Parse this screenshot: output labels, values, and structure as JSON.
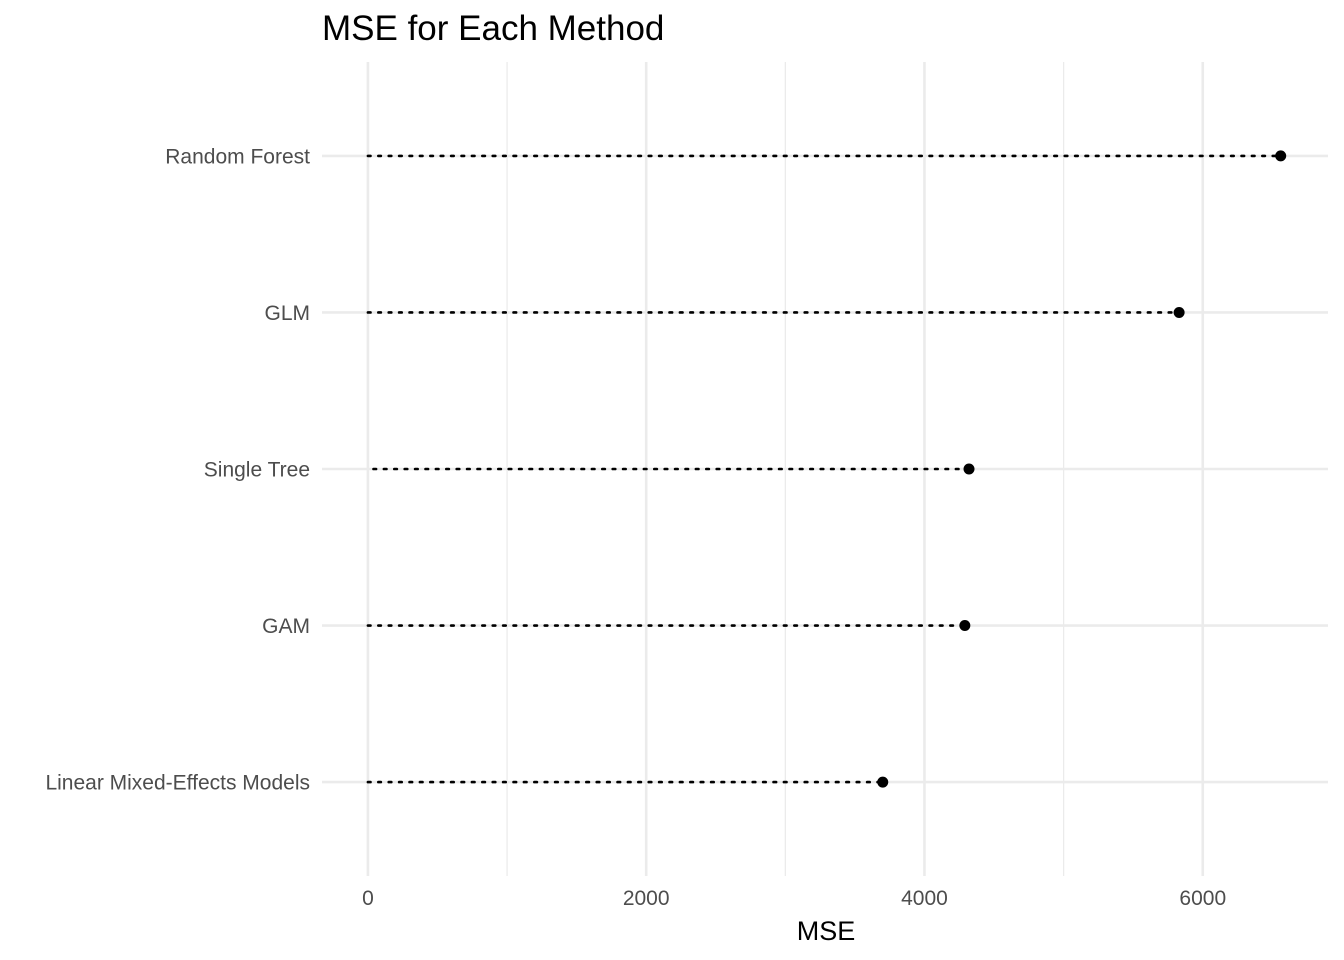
{
  "chart_data": {
    "type": "lollipop",
    "title": "MSE for Each Method",
    "xlabel": "MSE",
    "ylabel": "",
    "categories": [
      "Linear Mixed-Effects Models",
      "GAM",
      "Single Tree",
      "GLM",
      "Random Forest"
    ],
    "values": [
      3700,
      4290,
      4320,
      5830,
      6560
    ],
    "stem_start": [
      0,
      0,
      40,
      0,
      0
    ],
    "xlim": [
      -330,
      6900
    ],
    "xticks": [
      0,
      2000,
      4000,
      6000
    ],
    "xtick_labels": [
      "0",
      "2000",
      "4000",
      "6000"
    ],
    "x_minor_ticks": [
      1000,
      3000,
      5000
    ],
    "grid": true,
    "legend": "none",
    "colors": {
      "point": "#000000",
      "grid": "#ebebeb",
      "text": "#4d4d4d"
    }
  }
}
